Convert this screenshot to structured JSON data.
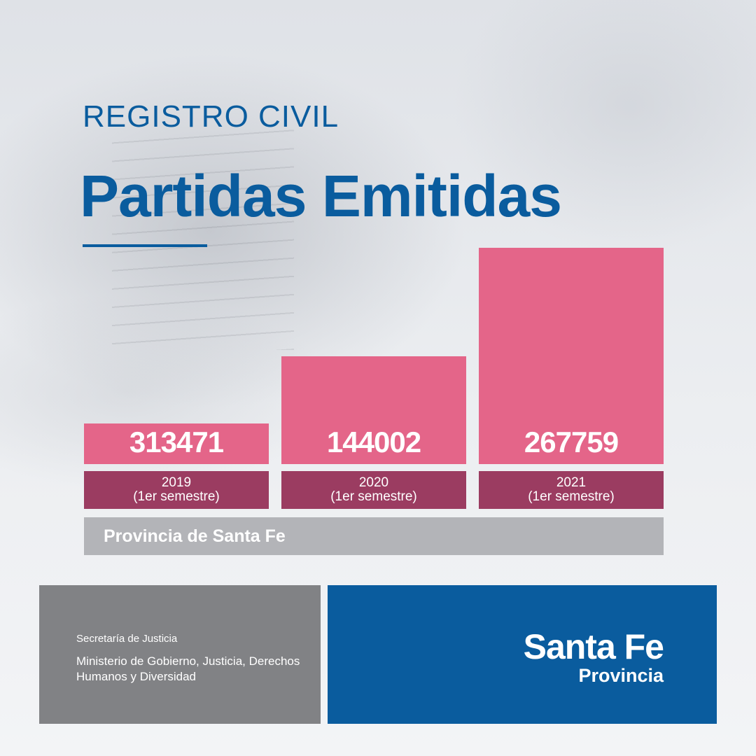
{
  "header": {
    "kicker": "REGISTRO CIVIL",
    "title": "Partidas Emitidas"
  },
  "chart_data": {
    "type": "bar",
    "categories": [
      [
        "2019",
        "(1er semestre)"
      ],
      [
        "2020",
        "(1er semestre)"
      ],
      [
        "2021",
        "(1er semestre)"
      ]
    ],
    "values": [
      313471,
      144002,
      267759
    ],
    "region": "Provincia de Santa Fe"
  },
  "footer": {
    "secretaria": "Secretaría de Justicia",
    "ministerio": "Ministerio de Gobierno, Justicia, Derechos Humanos y Diversidad",
    "brand": "Santa Fe",
    "brand_sub": "Provincia"
  },
  "colors": {
    "brand_blue": "#0a5c9e",
    "bar_pink": "#e46589",
    "label_plum": "#9b3c61",
    "region_gray": "#b3b4b8",
    "footer_gray": "#818285"
  }
}
